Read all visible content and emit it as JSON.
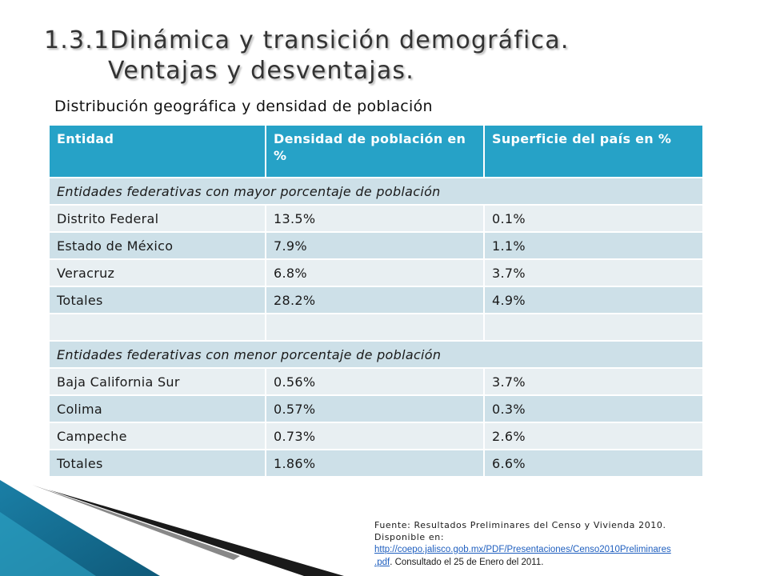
{
  "slide": {
    "title_line1": "1.3.1Dinámica y transición demográfica.",
    "title_line2": "Ventajas y desventajas.",
    "subtitle": "Distribución geográfica y densidad de población"
  },
  "table": {
    "headers": [
      "Entidad",
      "Densidad de población en %",
      "Superficie del país en %"
    ],
    "section_mayor": "Entidades federativas con mayor porcentaje de población",
    "mayor_rows": [
      [
        "Distrito Federal",
        "13.5%",
        "0.1%"
      ],
      [
        "Estado de México",
        "7.9%",
        "1.1%"
      ],
      [
        "Veracruz",
        "6.8%",
        "3.7%"
      ]
    ],
    "mayor_totals": [
      "Totales",
      "28.2%",
      "4.9%"
    ],
    "section_menor": "Entidades federativas con menor porcentaje de población",
    "menor_rows": [
      [
        "Baja California Sur",
        "0.56%",
        "3.7%"
      ],
      [
        "Colima",
        "0.57%",
        "0.3%"
      ],
      [
        "Campeche",
        "0.73%",
        "2.6%"
      ]
    ],
    "menor_totals": [
      "Totales",
      "1.86%",
      "6.6%"
    ]
  },
  "source": {
    "line1": "Fuente: Resultados Preliminares del Censo y Vivienda 2010.",
    "line2": "Disponible en:",
    "url_part1": "http://coepo.jalisco.gob.mx/PDF/Presentaciones/Censo2010Preliminares",
    "url_part2": ".pdf",
    "suffix": ". Consultado el 25 de Enero del 2011."
  },
  "colors": {
    "header_bg": "#26a2c7",
    "row_dark": "#cde0e8",
    "row_light": "#e8eff2",
    "link": "#1f5fbf"
  }
}
